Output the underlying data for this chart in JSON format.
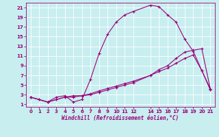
{
  "xlabel": "Windchill (Refroidissement éolien,°C)",
  "bg_color": "#c8eef0",
  "line_color": "#990077",
  "xlim": [
    -0.5,
    21.5
  ],
  "ylim": [
    0.5,
    22
  ],
  "xticks": [
    0,
    1,
    2,
    3,
    4,
    5,
    6,
    7,
    8,
    9,
    10,
    11,
    12,
    14,
    15,
    16,
    17,
    18,
    19,
    20,
    21
  ],
  "yticks": [
    1,
    3,
    5,
    7,
    9,
    11,
    13,
    15,
    17,
    19,
    21
  ],
  "curve1_x": [
    0,
    1,
    2,
    3,
    4,
    5,
    6,
    7,
    8,
    9,
    10,
    11,
    12,
    14,
    15,
    16,
    17,
    18,
    19,
    20,
    21
  ],
  "curve1_y": [
    2.5,
    2.0,
    1.5,
    2.5,
    2.8,
    1.5,
    2.0,
    6.2,
    11.5,
    15.5,
    18.0,
    19.5,
    20.2,
    21.5,
    21.2,
    19.5,
    18.0,
    14.5,
    12.0,
    8.0,
    4.0
  ],
  "curve2_x": [
    0,
    1,
    2,
    3,
    4,
    5,
    6,
    7,
    8,
    9,
    10,
    11,
    12,
    14,
    15,
    16,
    17,
    18,
    19,
    20,
    21
  ],
  "curve2_y": [
    2.5,
    2.0,
    1.5,
    2.0,
    2.5,
    2.5,
    2.8,
    3.2,
    3.8,
    4.3,
    4.8,
    5.3,
    5.8,
    7.0,
    7.8,
    8.5,
    9.5,
    10.5,
    11.2,
    8.0,
    4.2
  ],
  "curve3_x": [
    0,
    2,
    3,
    4,
    5,
    6,
    7,
    8,
    9,
    10,
    11,
    12,
    14,
    15,
    16,
    17,
    18,
    19,
    20,
    21
  ],
  "curve3_y": [
    2.5,
    1.5,
    2.0,
    2.5,
    2.8,
    2.8,
    3.0,
    3.5,
    4.0,
    4.5,
    5.0,
    5.5,
    7.0,
    8.2,
    9.0,
    10.5,
    11.8,
    12.2,
    12.5,
    4.2
  ]
}
